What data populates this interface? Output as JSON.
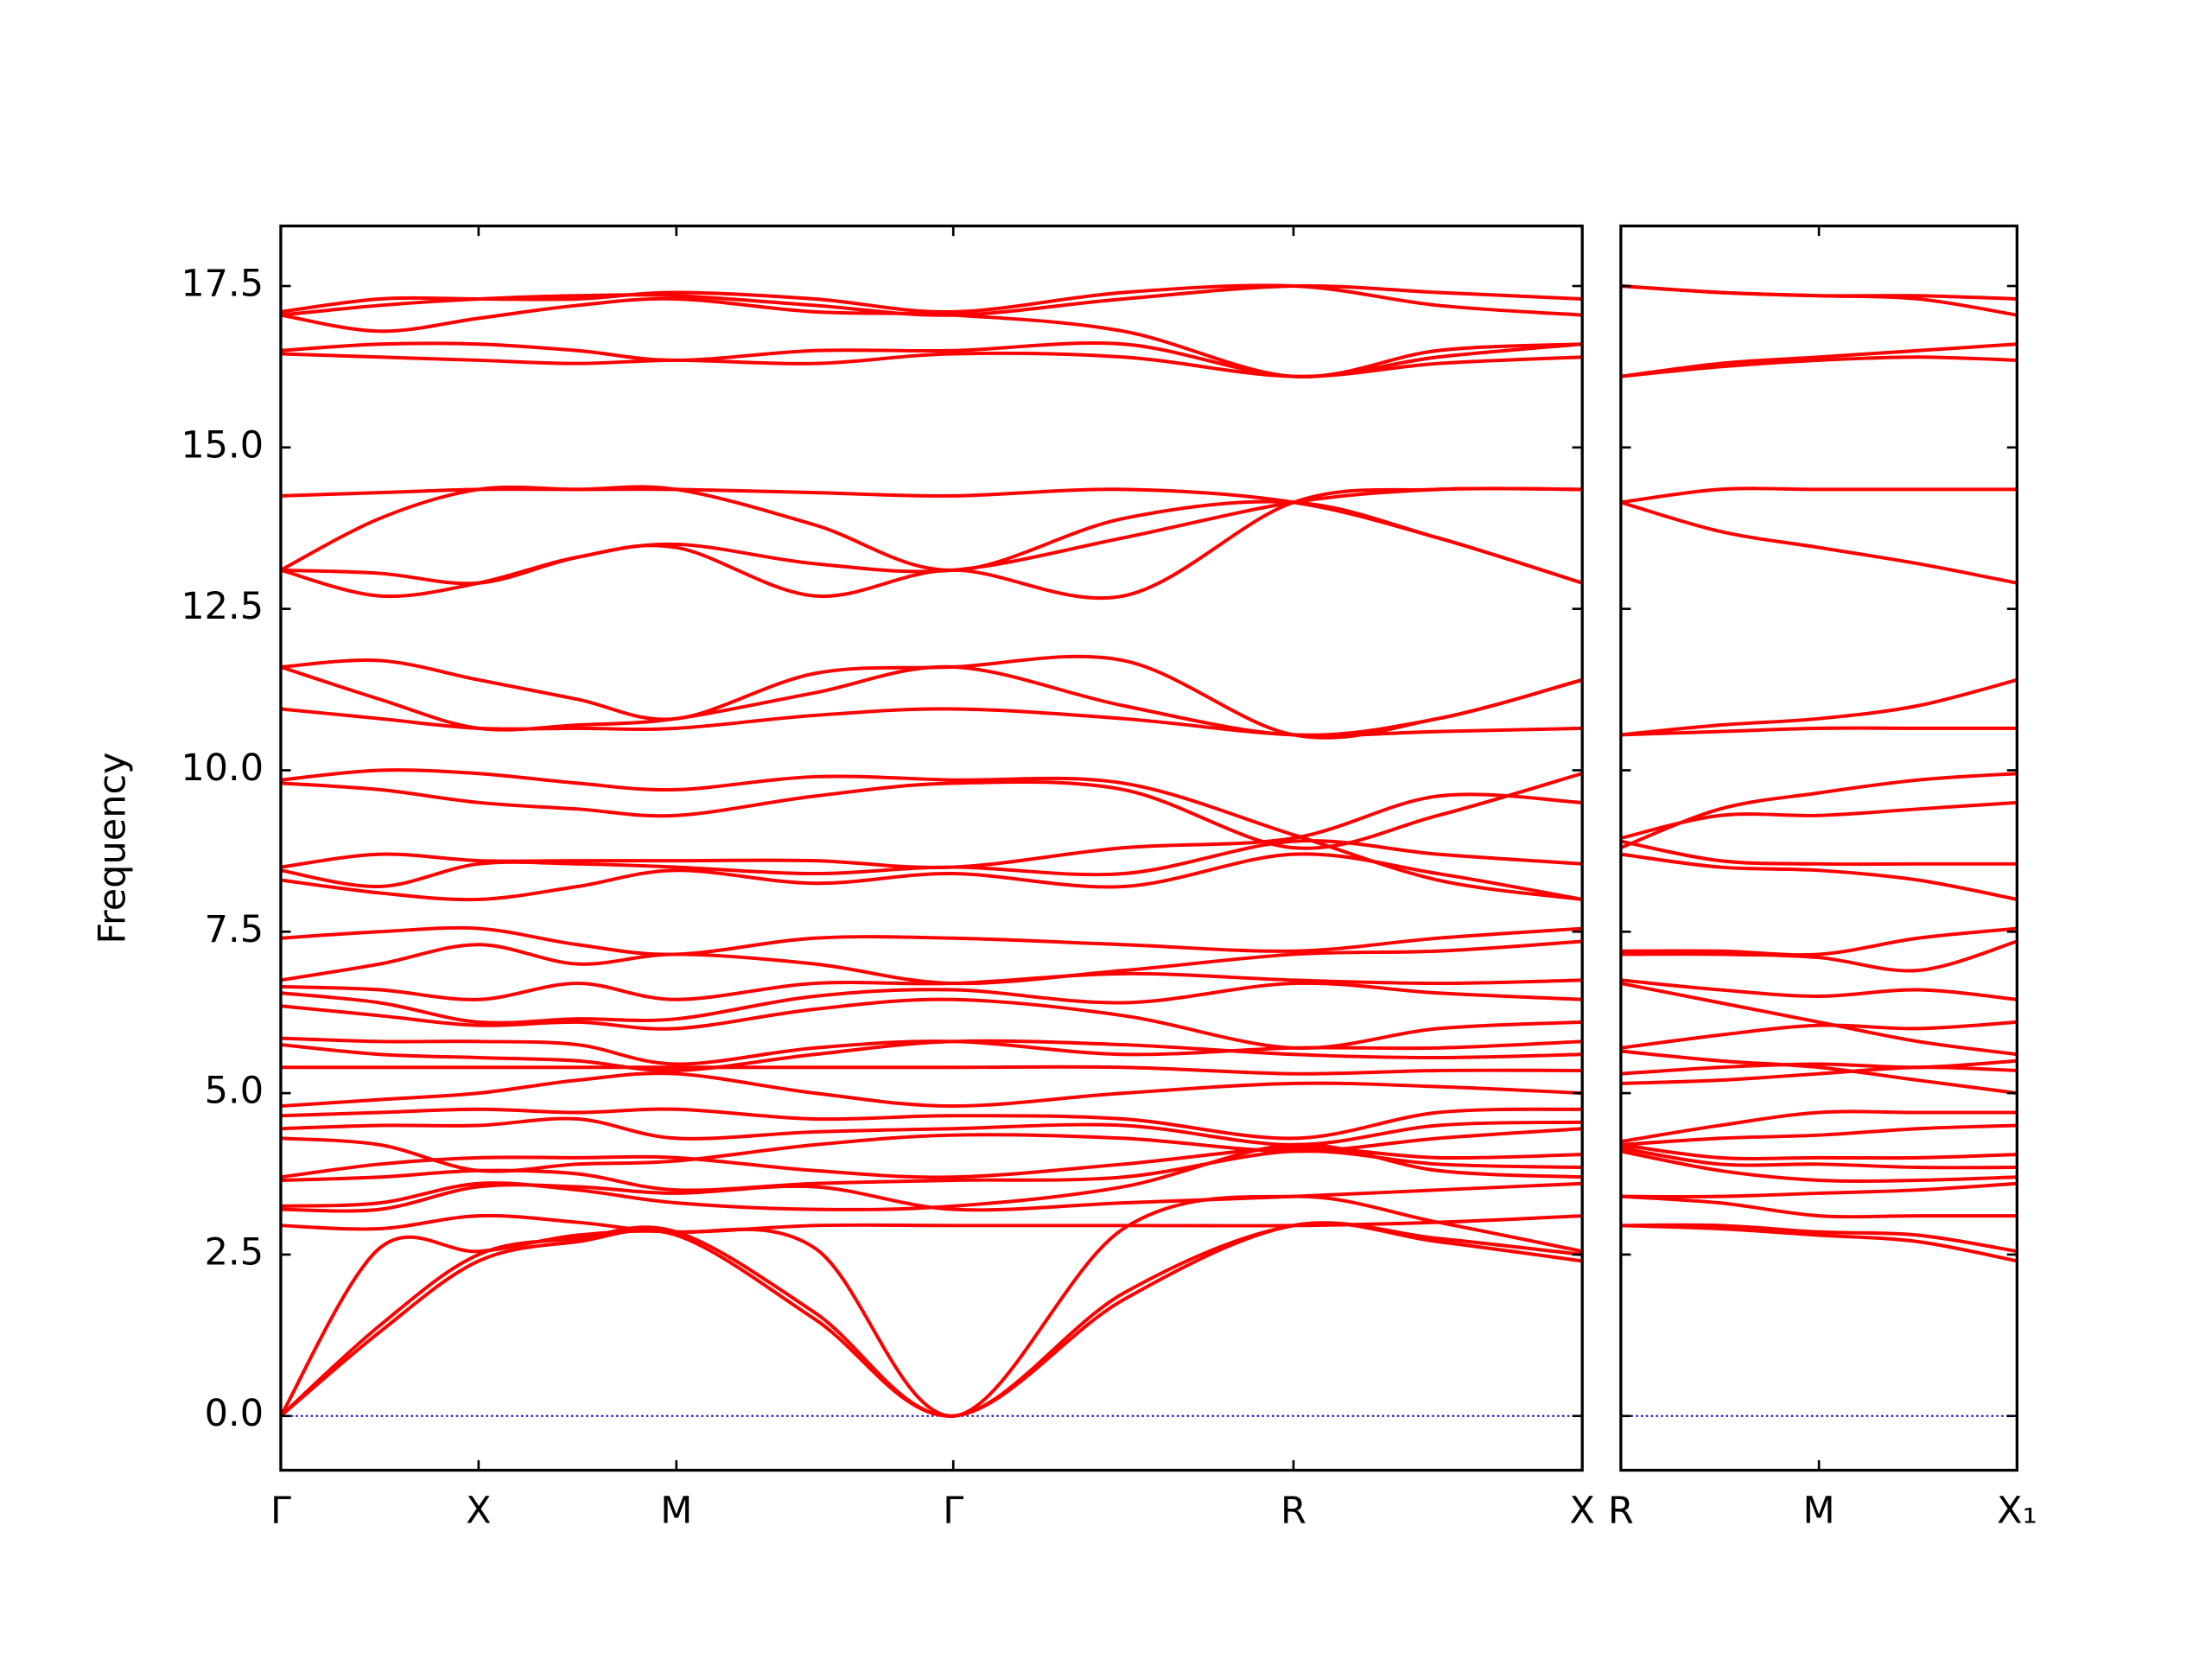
{
  "chart_data": [
    {
      "type": "line",
      "y_label": "Frequency",
      "color": "#ff0000",
      "zero_line": true,
      "zero_line_color": "#0000cc",
      "xlim": [
        0,
        3.29
      ],
      "ylim": [
        -0.84,
        18.43
      ],
      "xticks": [
        {
          "value": 0,
          "label": "Γ"
        },
        {
          "value": 0.5,
          "label": "X"
        },
        {
          "value": 1.0,
          "label": "M"
        },
        {
          "value": 1.7,
          "label": "Γ"
        },
        {
          "value": 2.56,
          "label": "R"
        },
        {
          "value": 3.29,
          "label": "X"
        }
      ],
      "yticks": [
        {
          "value": 0,
          "label": "0.0"
        },
        2.5,
        {
          "value": 5,
          "label": "5.0"
        },
        7.5,
        {
          "value": 10,
          "label": "10.0"
        },
        12.5,
        {
          "value": 15,
          "label": "15.0"
        },
        17.5
      ],
      "x": [
        0,
        0.25,
        0.5,
        0.75,
        1.0,
        1.35,
        1.7,
        2.13,
        2.56,
        2.925,
        3.29
      ],
      "series": [
        {
          "values": [
            0,
            1.3,
            2.4,
            2.7,
            2.8,
            1.5,
            0,
            1.8,
            2.95,
            2.7,
            2.4
          ]
        },
        {
          "values": [
            0,
            1.4,
            2.5,
            2.75,
            2.85,
            1.6,
            0,
            1.9,
            2.95,
            2.75,
            2.5
          ]
        },
        {
          "values": [
            0,
            2.6,
            2.55,
            2.8,
            2.85,
            2.6,
            0,
            2.9,
            3.4,
            3.0,
            2.55
          ]
        },
        {
          "values": [
            2.95,
            2.9,
            3.1,
            3.0,
            2.85,
            2.95,
            2.95,
            2.95,
            2.95,
            3.0,
            3.1
          ]
        },
        {
          "values": [
            3.2,
            3.2,
            3.55,
            3.55,
            3.45,
            3.55,
            3.2,
            3.3,
            3.4,
            3.5,
            3.6
          ]
        },
        {
          "values": [
            3.25,
            3.3,
            3.6,
            3.5,
            3.3,
            3.2,
            3.25,
            3.55,
            4.2,
            3.8,
            3.7
          ]
        },
        {
          "values": [
            3.65,
            3.7,
            3.8,
            3.75,
            3.5,
            3.6,
            3.65,
            3.7,
            4.1,
            3.9,
            3.85
          ]
        },
        {
          "values": [
            3.7,
            3.9,
            4.0,
            4.0,
            4.0,
            3.8,
            3.7,
            3.9,
            4.15,
            4.0,
            4.05
          ]
        },
        {
          "values": [
            4.3,
            4.2,
            3.8,
            3.9,
            3.95,
            4.2,
            4.35,
            4.3,
            4.1,
            4.3,
            4.45
          ]
        },
        {
          "values": [
            4.45,
            4.5,
            4.5,
            4.6,
            4.3,
            4.4,
            4.45,
            4.5,
            4.2,
            4.5,
            4.55
          ]
        },
        {
          "values": [
            4.65,
            4.7,
            4.75,
            4.7,
            4.75,
            4.6,
            4.65,
            4.6,
            4.3,
            4.7,
            4.75
          ]
        },
        {
          "values": [
            4.8,
            4.9,
            5.0,
            5.2,
            5.3,
            5.0,
            4.8,
            5.0,
            5.15,
            5.1,
            5.0
          ]
        },
        {
          "values": [
            5.4,
            5.4,
            5.4,
            5.4,
            5.4,
            5.4,
            5.4,
            5.4,
            5.3,
            5.35,
            5.35
          ]
        },
        {
          "values": [
            5.75,
            5.6,
            5.55,
            5.5,
            5.35,
            5.6,
            5.8,
            5.75,
            5.6,
            5.55,
            5.6
          ]
        },
        {
          "values": [
            5.85,
            5.8,
            5.8,
            5.75,
            5.45,
            5.7,
            5.8,
            5.6,
            5.7,
            5.7,
            5.8
          ]
        },
        {
          "values": [
            6.35,
            6.2,
            6.05,
            6.1,
            6.0,
            6.3,
            6.45,
            6.2,
            5.7,
            6.0,
            6.1
          ]
        },
        {
          "values": [
            6.55,
            6.4,
            6.1,
            6.15,
            6.15,
            6.5,
            6.6,
            6.4,
            6.7,
            6.55,
            6.45
          ]
        },
        {
          "values": [
            6.65,
            6.6,
            6.45,
            6.7,
            6.45,
            6.7,
            6.7,
            6.85,
            6.75,
            6.7,
            6.75
          ]
        },
        {
          "values": [
            6.75,
            7.0,
            7.3,
            7.0,
            7.15,
            7.0,
            6.7,
            6.9,
            7.15,
            7.2,
            7.35
          ]
        },
        {
          "values": [
            7.4,
            7.5,
            7.55,
            7.3,
            7.15,
            7.4,
            7.4,
            7.3,
            7.2,
            7.4,
            7.55
          ]
        },
        {
          "values": [
            8.3,
            8.1,
            8.0,
            8.2,
            8.45,
            8.25,
            8.4,
            8.2,
            8.7,
            8.4,
            8.0
          ]
        },
        {
          "values": [
            8.45,
            8.2,
            8.55,
            8.55,
            8.5,
            8.4,
            8.5,
            8.4,
            8.9,
            8.7,
            8.55
          ]
        },
        {
          "values": [
            8.5,
            8.7,
            8.6,
            8.6,
            8.6,
            8.6,
            8.5,
            8.8,
            8.95,
            9.6,
            9.5
          ]
        },
        {
          "values": [
            9.8,
            9.7,
            9.5,
            9.4,
            9.3,
            9.6,
            9.8,
            9.7,
            8.8,
            9.3,
            9.95
          ]
        },
        {
          "values": [
            9.85,
            10.0,
            9.95,
            9.8,
            9.7,
            9.9,
            9.85,
            9.8,
            9.0,
            8.3,
            8.0
          ]
        },
        {
          "values": [
            10.95,
            10.8,
            10.65,
            10.65,
            10.65,
            10.85,
            10.95,
            10.8,
            10.55,
            10.6,
            10.65
          ]
        },
        {
          "values": [
            11.6,
            11.1,
            10.65,
            10.7,
            10.8,
            11.2,
            11.6,
            11.0,
            10.55,
            10.8,
            11.4
          ]
        },
        {
          "values": [
            11.6,
            11.7,
            11.4,
            11.1,
            10.8,
            11.5,
            11.6,
            11.7,
            10.55,
            10.8,
            11.4
          ]
        },
        {
          "values": [
            13.1,
            12.7,
            12.9,
            13.3,
            13.45,
            12.7,
            13.1,
            12.7,
            14.15,
            14.35,
            14.35
          ]
        },
        {
          "values": [
            13.1,
            13.05,
            12.9,
            13.3,
            13.5,
            13.2,
            13.1,
            13.6,
            14.15,
            14.35,
            14.35
          ]
        },
        {
          "values": [
            13.1,
            13.9,
            14.35,
            14.35,
            14.35,
            13.8,
            13.1,
            13.9,
            14.15,
            13.6,
            12.9
          ]
        },
        {
          "values": [
            14.25,
            14.3,
            14.35,
            14.35,
            14.35,
            14.3,
            14.25,
            14.35,
            14.15,
            13.6,
            12.9
          ]
        },
        {
          "values": [
            16.45,
            16.4,
            16.35,
            16.3,
            16.35,
            16.3,
            16.45,
            16.4,
            16.1,
            16.3,
            16.4
          ]
        },
        {
          "values": [
            16.5,
            16.6,
            16.6,
            16.5,
            16.35,
            16.5,
            16.5,
            16.6,
            16.1,
            16.4,
            16.6
          ]
        },
        {
          "values": [
            17.05,
            16.8,
            17.0,
            17.2,
            17.3,
            17.1,
            17.05,
            16.8,
            16.1,
            16.5,
            16.6
          ]
        },
        {
          "values": [
            17.05,
            17.2,
            17.3,
            17.35,
            17.35,
            17.2,
            17.05,
            17.3,
            17.5,
            17.4,
            17.3
          ]
        },
        {
          "values": [
            17.1,
            17.3,
            17.3,
            17.3,
            17.4,
            17.3,
            17.1,
            17.4,
            17.5,
            17.2,
            17.05
          ]
        }
      ]
    },
    {
      "type": "line",
      "color": "#ff0000",
      "zero_line": true,
      "zero_line_color": "#0000cc",
      "xlim": [
        0,
        1.0
      ],
      "xticks": [
        {
          "value": 0,
          "label": "R"
        },
        {
          "value": 0.5,
          "label": "M"
        },
        {
          "value": 1.0,
          "label": "X₁"
        }
      ],
      "x": [
        0,
        0.25,
        0.5,
        0.75,
        1.0
      ],
      "series": [
        {
          "values": [
            2.95,
            2.9,
            2.8,
            2.7,
            2.4
          ]
        },
        {
          "values": [
            2.95,
            2.95,
            2.85,
            2.8,
            2.55
          ]
        },
        {
          "values": [
            3.4,
            3.4,
            3.45,
            3.5,
            3.6
          ]
        },
        {
          "values": [
            3.4,
            3.3,
            3.1,
            3.1,
            3.1
          ]
        },
        {
          "values": [
            4.1,
            3.8,
            3.65,
            3.65,
            3.7
          ]
        },
        {
          "values": [
            4.15,
            3.9,
            3.9,
            3.85,
            3.85
          ]
        },
        {
          "values": [
            4.2,
            4.0,
            4.0,
            4.0,
            4.05
          ]
        },
        {
          "values": [
            4.2,
            4.3,
            4.35,
            4.45,
            4.5
          ]
        },
        {
          "values": [
            4.25,
            4.5,
            4.7,
            4.7,
            4.7
          ]
        },
        {
          "values": [
            5.15,
            5.2,
            5.3,
            5.4,
            5.35
          ]
        },
        {
          "values": [
            5.3,
            5.4,
            5.45,
            5.4,
            5.5
          ]
        },
        {
          "values": [
            5.65,
            5.5,
            5.4,
            5.2,
            5.0
          ]
        },
        {
          "values": [
            5.7,
            5.9,
            6.05,
            6.0,
            6.1
          ]
        },
        {
          "values": [
            6.7,
            6.4,
            6.1,
            5.8,
            5.6
          ]
        },
        {
          "values": [
            6.75,
            6.6,
            6.5,
            6.6,
            6.45
          ]
        },
        {
          "values": [
            7.15,
            7.15,
            7.1,
            6.9,
            7.35
          ]
        },
        {
          "values": [
            7.2,
            7.2,
            7.15,
            7.4,
            7.55
          ]
        },
        {
          "values": [
            8.7,
            8.5,
            8.45,
            8.3,
            8.0
          ]
        },
        {
          "values": [
            8.9,
            8.6,
            8.55,
            8.55,
            8.55
          ]
        },
        {
          "values": [
            8.95,
            9.3,
            9.3,
            9.4,
            9.5
          ]
        },
        {
          "values": [
            8.8,
            9.4,
            9.65,
            9.85,
            9.95
          ]
        },
        {
          "values": [
            10.55,
            10.6,
            10.65,
            10.65,
            10.65
          ]
        },
        {
          "values": [
            10.55,
            10.7,
            10.8,
            11.0,
            11.4
          ]
        },
        {
          "values": [
            14.15,
            14.35,
            14.35,
            14.35,
            14.35
          ]
        },
        {
          "values": [
            14.15,
            13.7,
            13.45,
            13.2,
            12.9
          ]
        },
        {
          "values": [
            16.1,
            16.25,
            16.35,
            16.4,
            16.35
          ]
        },
        {
          "values": [
            16.1,
            16.3,
            16.4,
            16.5,
            16.6
          ]
        },
        {
          "values": [
            17.5,
            17.4,
            17.35,
            17.3,
            17.05
          ]
        },
        {
          "values": [
            17.5,
            17.4,
            17.35,
            17.35,
            17.3
          ]
        }
      ]
    }
  ]
}
